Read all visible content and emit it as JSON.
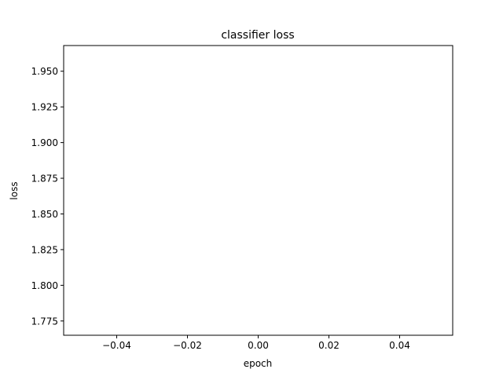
{
  "chart_data": {
    "type": "line",
    "title": "classifier loss",
    "xlabel": "epoch",
    "ylabel": "loss",
    "xlim": [
      -0.055,
      0.055
    ],
    "ylim": [
      1.765,
      1.968
    ],
    "x_ticks": [
      -0.04,
      -0.02,
      0.0,
      0.02,
      0.04
    ],
    "x_tick_labels": [
      "−0.04",
      "−0.02",
      "0.00",
      "0.02",
      "0.04"
    ],
    "y_ticks": [
      1.775,
      1.8,
      1.825,
      1.85,
      1.875,
      1.9,
      1.925,
      1.95
    ],
    "y_tick_labels": [
      "1.775",
      "1.800",
      "1.825",
      "1.850",
      "1.875",
      "1.900",
      "1.925",
      "1.950"
    ],
    "grid": false,
    "series": [
      {
        "x": [],
        "values": [],
        "color": "#1f77b4"
      }
    ]
  }
}
